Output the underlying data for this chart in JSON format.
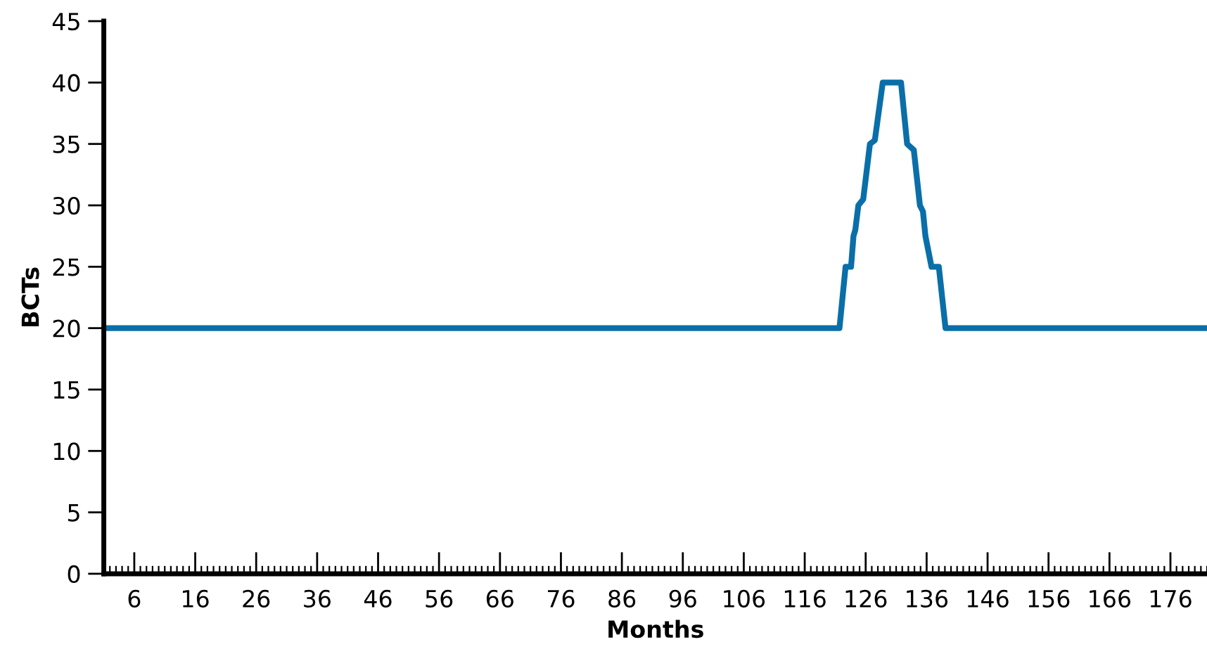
{
  "chart_data": {
    "type": "line",
    "xlabel": "Months",
    "ylabel": "BCTs",
    "xlim": [
      1,
      182
    ],
    "xticks": [
      6,
      16,
      26,
      36,
      46,
      56,
      66,
      76,
      86,
      96,
      106,
      116,
      126,
      136,
      146,
      156,
      166,
      176
    ],
    "ylim": [
      0,
      45
    ],
    "yticks": [
      0,
      5,
      10,
      15,
      20,
      25,
      30,
      35,
      40,
      45
    ],
    "grid": false,
    "marker": "none",
    "line_style": "solid",
    "series": [
      {
        "color": "#0a6fa8",
        "x": [
          1,
          121.7,
          122.7,
          123.6,
          124.0,
          124.3,
          124.8,
          125.6,
          126.7,
          127.5,
          128.8,
          131.8,
          132.8,
          133.9,
          134.9,
          135.4,
          135.8,
          136.8,
          138.0,
          139.1,
          182
        ],
        "values": [
          20,
          20,
          25,
          25,
          27.5,
          28,
          30,
          30.5,
          35,
          35.3,
          40,
          40,
          35,
          34.5,
          30,
          29.5,
          27.5,
          25,
          25,
          20,
          20
        ]
      }
    ]
  }
}
